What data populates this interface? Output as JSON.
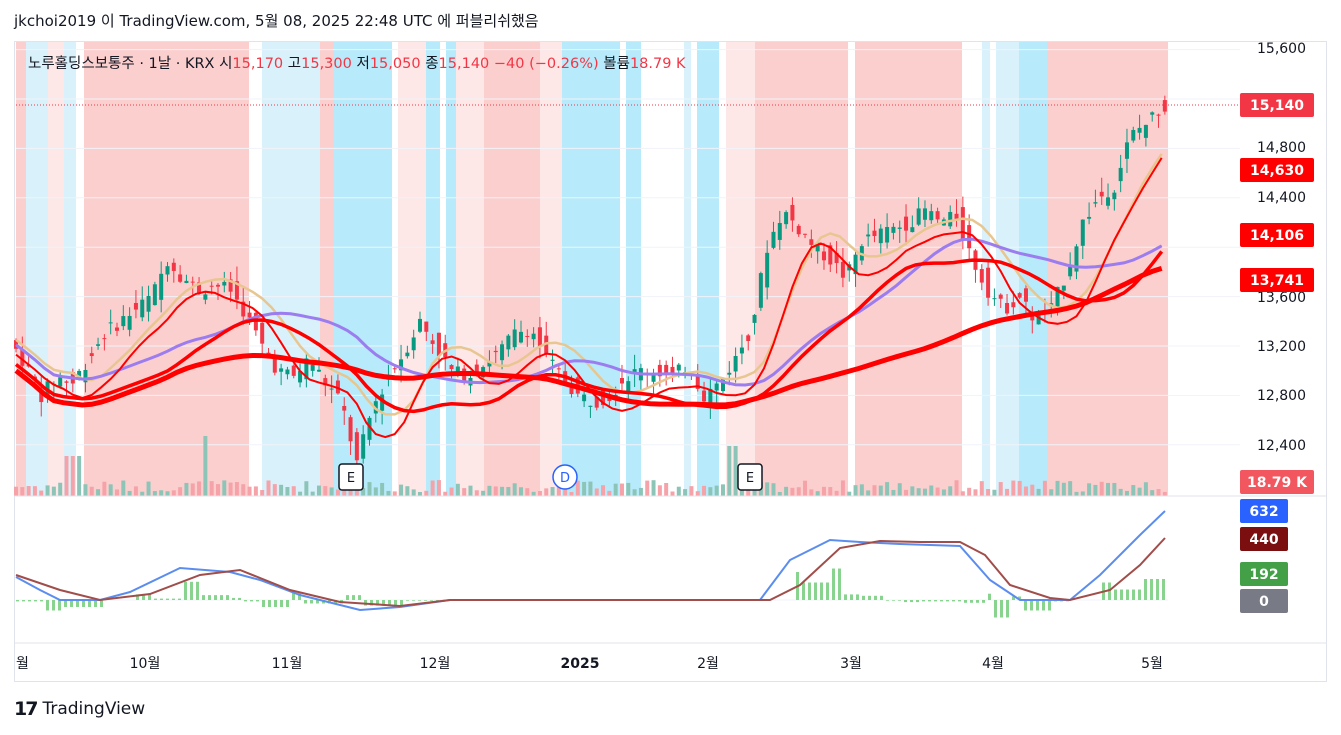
{
  "header": {
    "published": "jkchoi2019 이 TradingView.com, 5월 08, 2025 22:48 UTC 에 퍼블리쉬했음"
  },
  "footer": {
    "logo": "17",
    "brand": "TradingView"
  },
  "legend": {
    "symbol": "노루홀딩스보통주 · 1날 · KRX",
    "open_label": "시",
    "open": "15,170",
    "high_label": "고",
    "high": "15,300",
    "low_label": "저",
    "low": "15,050",
    "close_label": "종",
    "close": "15,140",
    "change": "−40 (−0.26%)",
    "volume_label": "볼륨",
    "volume": "18.79 K"
  },
  "colors": {
    "up": "#089981",
    "down": "#f23645",
    "bg_red": "#fccfcf",
    "bg_pink": "#fde7e7",
    "bg_cyan": "#b7ebfb",
    "bg_lightblue": "#d9f1fb",
    "ma_thick": "#ff0000",
    "ma_tan": "#e8c690",
    "ma_purple": "#9b7df0",
    "macd": "#5b8def",
    "signal": "#a14d4a",
    "hist": "#88d48f"
  },
  "price_labels": [
    {
      "value": "15,140",
      "color": "#f23645"
    },
    {
      "value": "14,630",
      "color": "#ff0000"
    },
    {
      "value": "14,106",
      "color": "#ff0000"
    },
    {
      "value": "13,741",
      "color": "#ff0000"
    },
    {
      "value": "18.79 K",
      "color": "#f2575f"
    }
  ],
  "macd_labels": [
    {
      "value": "632",
      "color": "#2962ff"
    },
    {
      "value": "440",
      "color": "#7b0f0f"
    },
    {
      "value": "192",
      "color": "#43a047"
    },
    {
      "value": "0",
      "color": "#787b86"
    }
  ],
  "events": [
    {
      "label": "E",
      "month": "11월"
    },
    {
      "label": "D",
      "month": "12월"
    },
    {
      "label": "E",
      "month": "2월"
    }
  ],
  "chart_data": {
    "type": "candlestick",
    "price_axis_ticks": [
      "15,600",
      "14,800",
      "14,400",
      "13,600",
      "13,200",
      "12,800",
      "12,400"
    ],
    "time_axis_labels": [
      "월",
      "10월",
      "11월",
      "12월",
      "2025",
      "2월",
      "3월",
      "4월",
      "5월"
    ],
    "ylim": [
      12000,
      15600
    ],
    "last": {
      "open": 15170,
      "high": 15300,
      "low": 15050,
      "close": 15140,
      "volume_k": 18.79
    },
    "ma_values": [
      14630,
      14106,
      13741
    ],
    "macd": {
      "macd": 632,
      "signal": 440,
      "histogram": 192
    },
    "close_path": [
      [
        0,
        13250
      ],
      [
        5,
        13050
      ],
      [
        10,
        12800
      ],
      [
        15,
        12950
      ],
      [
        20,
        12900
      ],
      [
        25,
        13100
      ],
      [
        30,
        13300
      ],
      [
        35,
        13400
      ],
      [
        40,
        13500
      ],
      [
        45,
        13600
      ],
      [
        50,
        13900
      ],
      [
        55,
        13750
      ],
      [
        60,
        13650
      ],
      [
        65,
        13700
      ],
      [
        70,
        13650
      ],
      [
        75,
        13450
      ],
      [
        80,
        13200
      ],
      [
        85,
        13000
      ],
      [
        90,
        12950
      ],
      [
        95,
        13100
      ],
      [
        100,
        12900
      ],
      [
        105,
        12750
      ],
      [
        110,
        12250
      ],
      [
        115,
        12700
      ],
      [
        120,
        12950
      ],
      [
        125,
        13150
      ],
      [
        130,
        13400
      ],
      [
        135,
        13200
      ],
      [
        140,
        13000
      ],
      [
        145,
        12950
      ],
      [
        150,
        13050
      ],
      [
        155,
        13150
      ],
      [
        160,
        13300
      ],
      [
        165,
        13350
      ],
      [
        170,
        13100
      ],
      [
        175,
        12950
      ],
      [
        180,
        12800
      ],
      [
        185,
        12750
      ],
      [
        190,
        12800
      ],
      [
        195,
        12950
      ],
      [
        200,
        13000
      ],
      [
        205,
        13000
      ],
      [
        210,
        12950
      ],
      [
        215,
        13050
      ],
      [
        220,
        12800
      ],
      [
        225,
        12900
      ],
      [
        230,
        13100
      ],
      [
        235,
        13350
      ],
      [
        240,
        14000
      ],
      [
        245,
        14300
      ],
      [
        250,
        14150
      ],
      [
        255,
        14000
      ],
      [
        260,
        13900
      ],
      [
        265,
        13750
      ],
      [
        270,
        14050
      ],
      [
        275,
        14100
      ],
      [
        280,
        14150
      ],
      [
        285,
        14200
      ],
      [
        290,
        14300
      ],
      [
        295,
        14200
      ],
      [
        300,
        14250
      ],
      [
        305,
        13900
      ],
      [
        310,
        13650
      ],
      [
        315,
        13500
      ],
      [
        320,
        13600
      ],
      [
        325,
        13400
      ],
      [
        330,
        13500
      ],
      [
        335,
        13800
      ],
      [
        340,
        14200
      ],
      [
        345,
        14400
      ],
      [
        350,
        14500
      ],
      [
        355,
        14900
      ],
      [
        360,
        15000
      ],
      [
        365,
        15140
      ]
    ],
    "volume_spikes_k": [
      {
        "x": 60,
        "value": 60
      },
      {
        "x": 227,
        "value": 50
      }
    ]
  }
}
